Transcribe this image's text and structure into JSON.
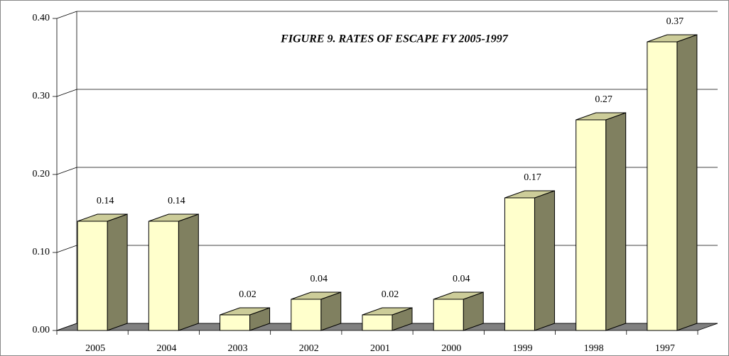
{
  "chart_data": {
    "type": "bar3d",
    "title": "FIGURE 9. RATES OF ESCAPE FY 2005-1997",
    "categories": [
      "2005",
      "2004",
      "2003",
      "2002",
      "2001",
      "2000",
      "1999",
      "1998",
      "1997"
    ],
    "values": [
      0.14,
      0.14,
      0.02,
      0.04,
      0.02,
      0.04,
      0.17,
      0.27,
      0.37
    ],
    "color": "#ffffcc",
    "ylim": [
      0,
      0.4
    ],
    "yticks": [
      {
        "value": 0,
        "label": "0.00"
      },
      {
        "value": 0.1,
        "label": "0.10"
      },
      {
        "value": 0.2,
        "label": "0.20"
      },
      {
        "value": 0.3,
        "label": "0.30"
      },
      {
        "value": 0.4,
        "label": "0.40"
      }
    ],
    "grid": true
  }
}
